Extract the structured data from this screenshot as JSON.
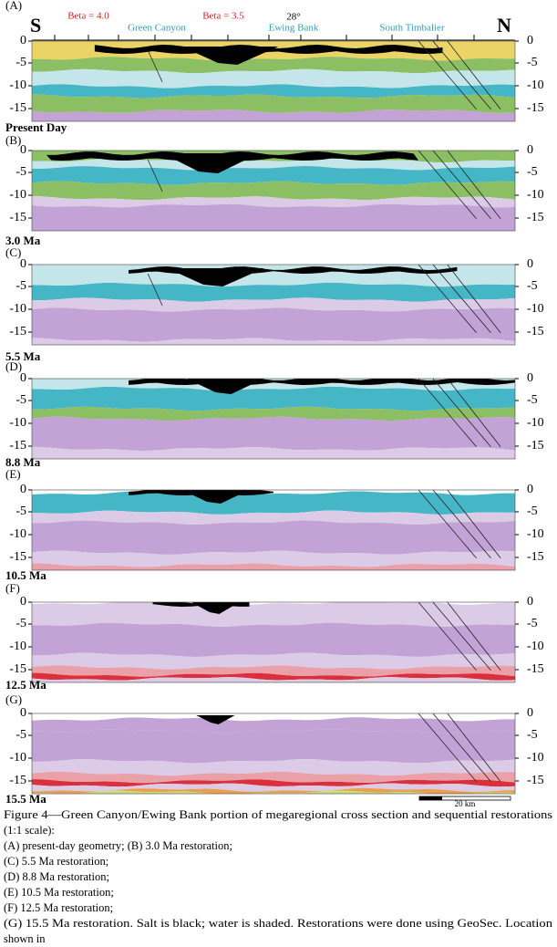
{
  "header": {
    "south": "S",
    "north": "N",
    "labels": [
      "Beta = 4.0",
      "Green Canyon",
      "Beta = 3.5",
      "28°",
      "Ewing Bank",
      "South Timbalier"
    ]
  },
  "depth_ticks": [
    "0",
    "-5",
    "-10",
    "-15"
  ],
  "panels": [
    {
      "label": "(A)",
      "age": "Present Day"
    },
    {
      "label": "(B)",
      "age": "3.0 Ma"
    },
    {
      "label": "(C)",
      "age": "5.5 Ma"
    },
    {
      "label": "(D)",
      "age": "8.8 Ma"
    },
    {
      "label": "(E)",
      "age": "10.5 Ma"
    },
    {
      "label": "(F)",
      "age": "12.5 Ma"
    },
    {
      "label": "(G)",
      "age": "15.5 Ma"
    }
  ],
  "scale_bar": "20 km",
  "caption": [
    "Figure 4—Green Canyon/Ewing Bank portion of megaregional cross section and sequential restorations",
    "(1:1 scale):",
    "(A) present-day geometry; (B) 3.0 Ma restoration;",
    "(C) 5.5 Ma restoration;",
    "(D) 8.8 Ma restoration;",
    "(E) 10.5 Ma restoration;",
    "(F) 12.5 Ma restoration;",
    "(G) 15.5 Ma restoration. Salt is black; water is shaded. Restorations were done using GeoSec. Location",
    "shown in"
  ]
}
